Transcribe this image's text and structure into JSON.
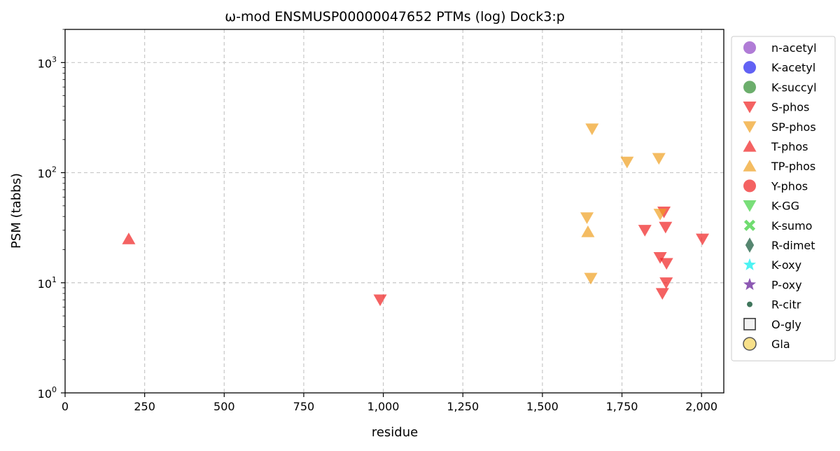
{
  "chart_data": {
    "type": "scatter",
    "title": "ω-mod ENSMUSP00000047652 PTMs (log) Dock3:p",
    "xlabel": "residue",
    "ylabel": "PSM (tabbs)",
    "xlim": [
      0,
      2070
    ],
    "ylim": [
      1,
      2000
    ],
    "yscale": "log",
    "grid": true,
    "legend_position": "outside-right",
    "x_ticks": [
      0,
      250,
      500,
      750,
      1000,
      1250,
      1500,
      1750,
      2000
    ],
    "x_tick_labels": [
      "0",
      "250",
      "500",
      "750",
      "1,000",
      "1,250",
      "1,500",
      "1,750",
      "2,000"
    ],
    "y_ticks": [
      1,
      10,
      100,
      1000
    ],
    "y_tick_labels": [
      {
        "base": "10",
        "exp": "0"
      },
      {
        "base": "10",
        "exp": "1"
      },
      {
        "base": "10",
        "exp": "2"
      },
      {
        "base": "10",
        "exp": "3"
      }
    ],
    "series": [
      {
        "name": "n-acetyl",
        "marker": "circle",
        "color": "#8e44c4",
        "points": []
      },
      {
        "name": "K-acetyl",
        "marker": "circle",
        "color": "#2020f0",
        "points": []
      },
      {
        "name": "K-succyl",
        "marker": "circle",
        "color": "#2e8b2e",
        "points": []
      },
      {
        "name": "S-phos",
        "marker": "triangle-down",
        "color": "#f02020",
        "points": [
          [
            990,
            7
          ],
          [
            1822,
            30
          ],
          [
            1870,
            17
          ],
          [
            1877,
            8
          ],
          [
            1882,
            44
          ],
          [
            1887,
            32
          ],
          [
            1889,
            10
          ],
          [
            1890,
            15
          ],
          [
            2003,
            25
          ]
        ]
      },
      {
        "name": "SP-phos",
        "marker": "triangle-down",
        "color": "#f0a020",
        "points": [
          [
            1640,
            39
          ],
          [
            1652,
            11
          ],
          [
            1656,
            250
          ],
          [
            1766,
            125
          ],
          [
            1866,
            135
          ],
          [
            1870,
            42
          ]
        ]
      },
      {
        "name": "T-phos",
        "marker": "triangle-up",
        "color": "#f02020",
        "points": [
          [
            200,
            25
          ]
        ]
      },
      {
        "name": "TP-phos",
        "marker": "triangle-up",
        "color": "#f0a020",
        "points": [
          [
            1643,
            29
          ]
        ]
      },
      {
        "name": "Y-phos",
        "marker": "circle",
        "color": "#f02020",
        "points": []
      },
      {
        "name": "K-GG",
        "marker": "triangle-down",
        "color": "#40d040",
        "points": []
      },
      {
        "name": "K-sumo",
        "marker": "x",
        "color": "#40d040",
        "points": []
      },
      {
        "name": "R-dimet",
        "marker": "diamond",
        "color": "#1e5e40",
        "points": []
      },
      {
        "name": "K-oxy",
        "marker": "star",
        "color": "#20f0f0",
        "points": []
      },
      {
        "name": "P-oxy",
        "marker": "star",
        "color": "#7030a0",
        "points": []
      },
      {
        "name": "R-citr",
        "marker": "small-circle",
        "color": "#1e5e40",
        "points": []
      },
      {
        "name": "O-gly",
        "marker": "square-open",
        "color": "#333333",
        "points": []
      },
      {
        "name": "Gla",
        "marker": "circle-open",
        "color": "#f7e08a",
        "points": []
      }
    ]
  }
}
